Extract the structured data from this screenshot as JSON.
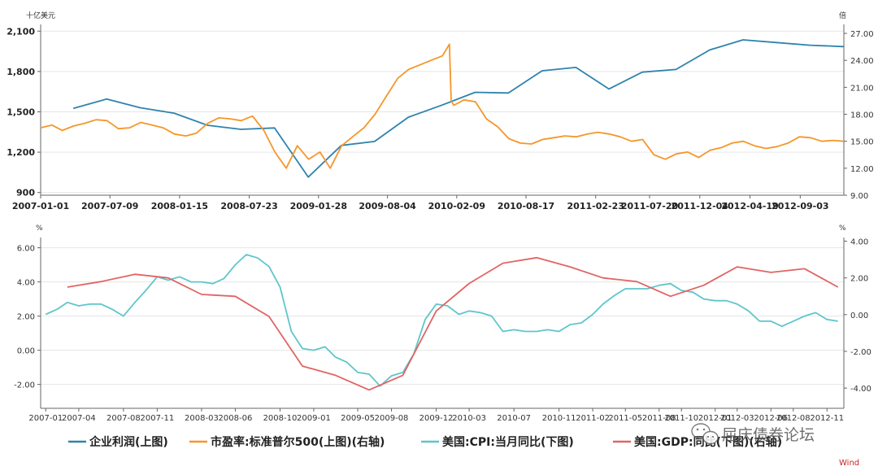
{
  "colors": {
    "profit": "#2e83ad",
    "pe": "#f5962a",
    "cpi": "#5ec6cc",
    "gdp": "#e26464",
    "grid": "#e6e6e6",
    "axis": "#666666"
  },
  "chart_data": [
    {
      "type": "line",
      "panel": "top",
      "left_unit": "十亿美元",
      "right_unit": "倍",
      "x_ticks": [
        "2007-01-01",
        "2007-07-09",
        "2008-01-15",
        "2008-07-23",
        "2009-01-28",
        "2009-08-04",
        "2010-02-09",
        "2010-08-17",
        "2011-02-23",
        "2011-07-20",
        "2011-12-04",
        "2012-04-19",
        "2012-09-03"
      ],
      "y_left_ticks": [
        "900",
        "1,200",
        "1,500",
        "1,800",
        "2,100"
      ],
      "y_right_ticks": [
        "9.00",
        "12.00",
        "15.00",
        "18.00",
        "21.00",
        "24.00",
        "27.00"
      ],
      "ylim_left": [
        880,
        2150
      ],
      "ylim_right": [
        9,
        28
      ],
      "series": [
        {
          "name": "企业利润(上图)",
          "axis": "left",
          "points": [
            [
              "2007-03-31",
              1525
            ],
            [
              "2007-06-30",
              1595
            ],
            [
              "2007-09-30",
              1530
            ],
            [
              "2007-12-31",
              1490
            ],
            [
              "2008-03-31",
              1400
            ],
            [
              "2008-06-30",
              1370
            ],
            [
              "2008-09-30",
              1380
            ],
            [
              "2008-12-31",
              1015
            ],
            [
              "2009-03-31",
              1250
            ],
            [
              "2009-06-30",
              1280
            ],
            [
              "2009-09-30",
              1460
            ],
            [
              "2009-12-31",
              1550
            ],
            [
              "2010-03-31",
              1645
            ],
            [
              "2010-06-30",
              1640
            ],
            [
              "2010-09-30",
              1805
            ],
            [
              "2010-12-31",
              1830
            ],
            [
              "2011-03-31",
              1670
            ],
            [
              "2011-06-30",
              1795
            ],
            [
              "2011-09-30",
              1815
            ],
            [
              "2011-12-31",
              1960
            ],
            [
              "2012-03-31",
              2035
            ],
            [
              "2012-06-30",
              2015
            ],
            [
              "2012-09-30",
              1995
            ],
            [
              "2012-12-31",
              1985
            ]
          ]
        },
        {
          "name": "市盈率:标准普尔500(上图)(右轴)",
          "axis": "right",
          "points": [
            [
              "2007-01-01",
              16.5
            ],
            [
              "2007-02-01",
              16.8
            ],
            [
              "2007-03-01",
              16.2
            ],
            [
              "2007-04-01",
              16.7
            ],
            [
              "2007-05-01",
              17.0
            ],
            [
              "2007-06-01",
              17.4
            ],
            [
              "2007-07-01",
              17.3
            ],
            [
              "2007-08-01",
              16.4
            ],
            [
              "2007-09-01",
              16.5
            ],
            [
              "2007-10-01",
              17.1
            ],
            [
              "2007-11-01",
              16.8
            ],
            [
              "2007-12-01",
              16.5
            ],
            [
              "2008-01-01",
              15.8
            ],
            [
              "2008-02-01",
              15.6
            ],
            [
              "2008-03-01",
              15.9
            ],
            [
              "2008-04-01",
              17.0
            ],
            [
              "2008-05-01",
              17.6
            ],
            [
              "2008-06-01",
              17.5
            ],
            [
              "2008-07-01",
              17.3
            ],
            [
              "2008-08-01",
              17.8
            ],
            [
              "2008-09-01",
              16.2
            ],
            [
              "2008-10-01",
              13.8
            ],
            [
              "2008-11-01",
              12.0
            ],
            [
              "2008-12-01",
              14.5
            ],
            [
              "2009-01-01",
              13.0
            ],
            [
              "2009-02-01",
              13.8
            ],
            [
              "2009-03-01",
              12.0
            ],
            [
              "2009-04-01",
              14.5
            ],
            [
              "2009-05-01",
              15.5
            ],
            [
              "2009-06-01",
              16.5
            ],
            [
              "2009-07-01",
              18.0
            ],
            [
              "2009-08-01",
              20.0
            ],
            [
              "2009-09-01",
              22.0
            ],
            [
              "2009-10-01",
              23.0
            ],
            [
              "2009-11-01",
              23.5
            ],
            [
              "2009-12-01",
              24.0
            ],
            [
              "2010-01-01",
              24.5
            ],
            [
              "2010-01-20",
              25.8
            ],
            [
              "2010-01-25",
              19.5
            ],
            [
              "2010-02-01",
              19.0
            ],
            [
              "2010-03-01",
              19.6
            ],
            [
              "2010-04-01",
              19.4
            ],
            [
              "2010-05-01",
              17.5
            ],
            [
              "2010-06-01",
              16.6
            ],
            [
              "2010-07-01",
              15.3
            ],
            [
              "2010-08-01",
              14.8
            ],
            [
              "2010-09-01",
              14.7
            ],
            [
              "2010-10-01",
              15.2
            ],
            [
              "2010-11-01",
              15.4
            ],
            [
              "2010-12-01",
              15.6
            ],
            [
              "2011-01-01",
              15.5
            ],
            [
              "2011-02-01",
              15.8
            ],
            [
              "2011-03-01",
              16.0
            ],
            [
              "2011-04-01",
              15.8
            ],
            [
              "2011-05-01",
              15.5
            ],
            [
              "2011-06-01",
              15.0
            ],
            [
              "2011-07-01",
              15.2
            ],
            [
              "2011-08-01",
              13.5
            ],
            [
              "2011-09-01",
              13.0
            ],
            [
              "2011-10-01",
              13.6
            ],
            [
              "2011-11-01",
              13.8
            ],
            [
              "2011-12-01",
              13.2
            ],
            [
              "2012-01-01",
              14.0
            ],
            [
              "2012-02-01",
              14.3
            ],
            [
              "2012-03-01",
              14.8
            ],
            [
              "2012-04-01",
              15.0
            ],
            [
              "2012-05-01",
              14.5
            ],
            [
              "2012-06-01",
              14.2
            ],
            [
              "2012-07-01",
              14.4
            ],
            [
              "2012-08-01",
              14.8
            ],
            [
              "2012-09-01",
              15.5
            ],
            [
              "2012-10-01",
              15.4
            ],
            [
              "2012-11-01",
              15.0
            ],
            [
              "2012-12-01",
              15.1
            ],
            [
              "2012-12-31",
              15.0
            ]
          ]
        }
      ]
    },
    {
      "type": "line",
      "panel": "bottom",
      "left_unit": "%",
      "right_unit": "%",
      "x_ticks": [
        "2007-01",
        "2007-04",
        "2007-08",
        "2007-11",
        "2008-03",
        "2008-06",
        "2008-10",
        "2009-01",
        "2009-05",
        "2009-08",
        "2009-12",
        "2010-03",
        "2010-07",
        "2010-11",
        "2011-02",
        "2011-05",
        "2011-08",
        "2011-10",
        "2012-01",
        "2012-03",
        "2012-06",
        "2012-08",
        "2012-11"
      ],
      "y_left_ticks": [
        "-2.00",
        "0.00",
        "2.00",
        "4.00",
        "6.00"
      ],
      "y_right_ticks": [
        "-4.00",
        "-2.00",
        "0.00",
        "2.00",
        "4.00"
      ],
      "ylim_left": [
        -3.4,
        6.6
      ],
      "ylim_right": [
        -5.1,
        4.2
      ],
      "series": [
        {
          "name": "美国:CPI:当月同比(下图)",
          "axis": "left",
          "points": [
            [
              "2007-01",
              2.1
            ],
            [
              "2007-02",
              2.4
            ],
            [
              "2007-03",
              2.8
            ],
            [
              "2007-04",
              2.6
            ],
            [
              "2007-05",
              2.7
            ],
            [
              "2007-06",
              2.7
            ],
            [
              "2007-07",
              2.4
            ],
            [
              "2007-08",
              2.0
            ],
            [
              "2007-09",
              2.8
            ],
            [
              "2007-10",
              3.5
            ],
            [
              "2007-11",
              4.3
            ],
            [
              "2007-12",
              4.1
            ],
            [
              "2008-01",
              4.3
            ],
            [
              "2008-02",
              4.0
            ],
            [
              "2008-03",
              4.0
            ],
            [
              "2008-04",
              3.9
            ],
            [
              "2008-05",
              4.2
            ],
            [
              "2008-06",
              5.0
            ],
            [
              "2008-07",
              5.6
            ],
            [
              "2008-08",
              5.4
            ],
            [
              "2008-09",
              4.9
            ],
            [
              "2008-10",
              3.7
            ],
            [
              "2008-11",
              1.1
            ],
            [
              "2008-12",
              0.1
            ],
            [
              "2009-01",
              0.0
            ],
            [
              "2009-02",
              0.2
            ],
            [
              "2009-03",
              -0.4
            ],
            [
              "2009-04",
              -0.7
            ],
            [
              "2009-05",
              -1.3
            ],
            [
              "2009-06",
              -1.4
            ],
            [
              "2009-07",
              -2.1
            ],
            [
              "2009-08",
              -1.5
            ],
            [
              "2009-09",
              -1.3
            ],
            [
              "2009-10",
              -0.2
            ],
            [
              "2009-11",
              1.8
            ],
            [
              "2009-12",
              2.7
            ],
            [
              "2010-01",
              2.6
            ],
            [
              "2010-02",
              2.1
            ],
            [
              "2010-03",
              2.3
            ],
            [
              "2010-04",
              2.2
            ],
            [
              "2010-05",
              2.0
            ],
            [
              "2010-06",
              1.1
            ],
            [
              "2010-07",
              1.2
            ],
            [
              "2010-08",
              1.1
            ],
            [
              "2010-09",
              1.1
            ],
            [
              "2010-10",
              1.2
            ],
            [
              "2010-11",
              1.1
            ],
            [
              "2010-12",
              1.5
            ],
            [
              "2011-01",
              1.6
            ],
            [
              "2011-02",
              2.1
            ],
            [
              "2011-03",
              2.7
            ],
            [
              "2011-04",
              3.2
            ],
            [
              "2011-05",
              3.6
            ],
            [
              "2011-06",
              3.6
            ],
            [
              "2011-07",
              3.6
            ],
            [
              "2011-08",
              3.8
            ],
            [
              "2011-09",
              3.9
            ],
            [
              "2011-10",
              3.5
            ],
            [
              "2011-11",
              3.4
            ],
            [
              "2011-12",
              3.0
            ],
            [
              "2012-01",
              2.9
            ],
            [
              "2012-02",
              2.9
            ],
            [
              "2012-03",
              2.7
            ],
            [
              "2012-04",
              2.3
            ],
            [
              "2012-05",
              1.7
            ],
            [
              "2012-06",
              1.7
            ],
            [
              "2012-07",
              1.4
            ],
            [
              "2012-08",
              1.7
            ],
            [
              "2012-09",
              2.0
            ],
            [
              "2012-10",
              2.2
            ],
            [
              "2012-11",
              1.8
            ],
            [
              "2012-12",
              1.7
            ]
          ]
        },
        {
          "name": "美国:GDP:同比(下图)(右轴)",
          "axis": "right",
          "points": [
            [
              "2007-03",
              1.5
            ],
            [
              "2007-06",
              1.8
            ],
            [
              "2007-09",
              2.2
            ],
            [
              "2007-12",
              2.0
            ],
            [
              "2008-03",
              1.1
            ],
            [
              "2008-06",
              1.0
            ],
            [
              "2008-09",
              -0.1
            ],
            [
              "2008-12",
              -2.8
            ],
            [
              "2009-03",
              -3.3
            ],
            [
              "2009-06",
              -4.1
            ],
            [
              "2009-09",
              -3.3
            ],
            [
              "2009-12",
              0.2
            ],
            [
              "2010-03",
              1.7
            ],
            [
              "2010-06",
              2.8
            ],
            [
              "2010-09",
              3.1
            ],
            [
              "2010-12",
              2.6
            ],
            [
              "2011-03",
              2.0
            ],
            [
              "2011-06",
              1.8
            ],
            [
              "2011-09",
              1.0
            ],
            [
              "2011-12",
              1.6
            ],
            [
              "2012-03",
              2.6
            ],
            [
              "2012-06",
              2.3
            ],
            [
              "2012-09",
              2.5
            ],
            [
              "2012-12",
              1.5
            ]
          ]
        }
      ]
    }
  ],
  "legend": {
    "items": [
      {
        "label": "企业利润(上图)",
        "color_key": "profit"
      },
      {
        "label": "市盈率:标准普尔500(上图)(右轴)",
        "color_key": "pe"
      },
      {
        "label": "美国:CPI:当月同比(下图)",
        "color_key": "cpi"
      },
      {
        "label": "美国:GDP:同比(下图)(右轴)",
        "color_key": "gdp"
      }
    ]
  },
  "watermark": {
    "text": "屈庆债券论坛",
    "icon": "wechat-icon"
  },
  "source": "Wind"
}
